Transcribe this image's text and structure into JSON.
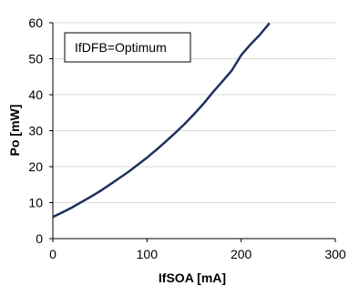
{
  "chart_data": {
    "type": "line",
    "title": "",
    "xlabel": "IfSOA [mA]",
    "ylabel": "Po [mW]",
    "xlim": [
      0,
      300
    ],
    "ylim": [
      0,
      60
    ],
    "xticks": [
      0,
      100,
      200,
      300
    ],
    "yticks": [
      0,
      10,
      20,
      30,
      40,
      50,
      60
    ],
    "grid": "horizontal",
    "legend": "none",
    "annotation": "IfDFB=Optimum",
    "series": [
      {
        "color": "#1f2f5f",
        "x": [
          0,
          10,
          20,
          30,
          40,
          50,
          60,
          70,
          80,
          90,
          100,
          110,
          120,
          130,
          140,
          150,
          160,
          170,
          180,
          190,
          200,
          210,
          220,
          230
        ],
        "y": [
          6,
          7.3,
          8.6,
          10.1,
          11.6,
          13.2,
          14.9,
          16.7,
          18.5,
          20.5,
          22.5,
          24.7,
          27.0,
          29.4,
          31.9,
          34.6,
          37.5,
          40.7,
          43.7,
          46.7,
          51.0,
          54.0,
          56.7,
          59.9
        ]
      }
    ]
  }
}
